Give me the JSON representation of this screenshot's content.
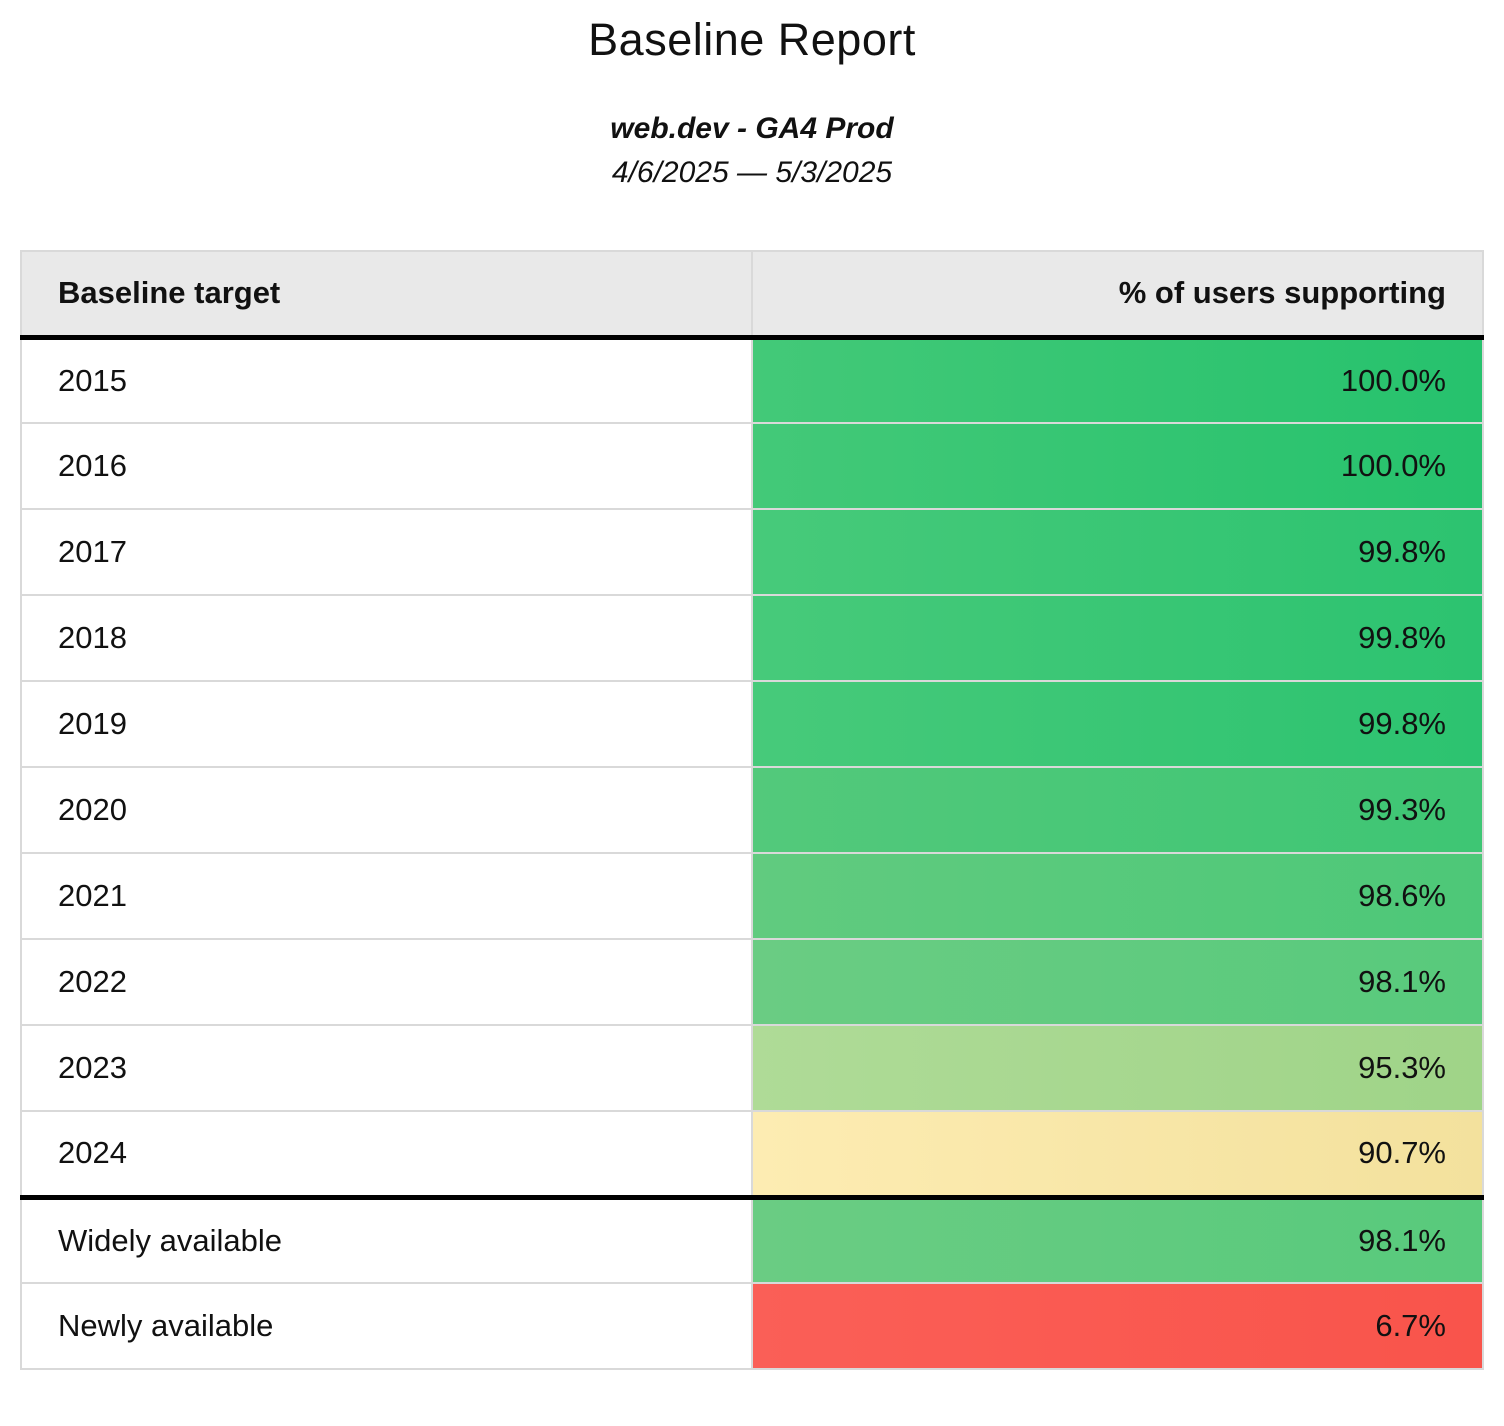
{
  "page": {
    "title": "Baseline Report",
    "subtitle": "web.dev - GA4 Prod",
    "date_range": "4/6/2025 — 5/3/2025"
  },
  "table": {
    "columns": [
      {
        "label": "Baseline target",
        "align": "left"
      },
      {
        "label": "% of users supporting",
        "align": "right"
      }
    ],
    "rows": [
      {
        "target": "2015",
        "value": "100.0%",
        "bg_left": "#43c978",
        "bg_right": "#26c26d",
        "thick_top": false
      },
      {
        "target": "2016",
        "value": "100.0%",
        "bg_left": "#43c978",
        "bg_right": "#26c26d",
        "thick_top": false
      },
      {
        "target": "2017",
        "value": "99.8%",
        "bg_left": "#47ca7a",
        "bg_right": "#2cc370",
        "thick_top": false
      },
      {
        "target": "2018",
        "value": "99.8%",
        "bg_left": "#47ca7a",
        "bg_right": "#2cc370",
        "thick_top": false
      },
      {
        "target": "2019",
        "value": "99.8%",
        "bg_left": "#47ca7a",
        "bg_right": "#2cc370",
        "thick_top": false
      },
      {
        "target": "2020",
        "value": "99.3%",
        "bg_left": "#53c97b",
        "bg_right": "#3ec674",
        "thick_top": false
      },
      {
        "target": "2021",
        "value": "98.6%",
        "bg_left": "#61cb7f",
        "bg_right": "#4dc878",
        "thick_top": false
      },
      {
        "target": "2022",
        "value": "98.1%",
        "bg_left": "#6acc83",
        "bg_right": "#58ca7c",
        "thick_top": false
      },
      {
        "target": "2023",
        "value": "95.3%",
        "bg_left": "#afdb97",
        "bg_right": "#9fd488",
        "thick_top": false
      },
      {
        "target": "2024",
        "value": "90.7%",
        "bg_left": "#fdecb2",
        "bg_right": "#f3e19d",
        "thick_top": false
      },
      {
        "target": "Widely available",
        "value": "98.1%",
        "bg_left": "#6acc83",
        "bg_right": "#58ca7c",
        "thick_top": true
      },
      {
        "target": "Newly available",
        "value": "6.7%",
        "bg_left": "#fa5f57",
        "bg_right": "#f9544b",
        "thick_top": false
      }
    ]
  },
  "colors": {
    "header_background": "#e9e9e9",
    "grid_line": "#d9d9d9",
    "thick_divider": "#000000",
    "text": "#111111"
  }
}
